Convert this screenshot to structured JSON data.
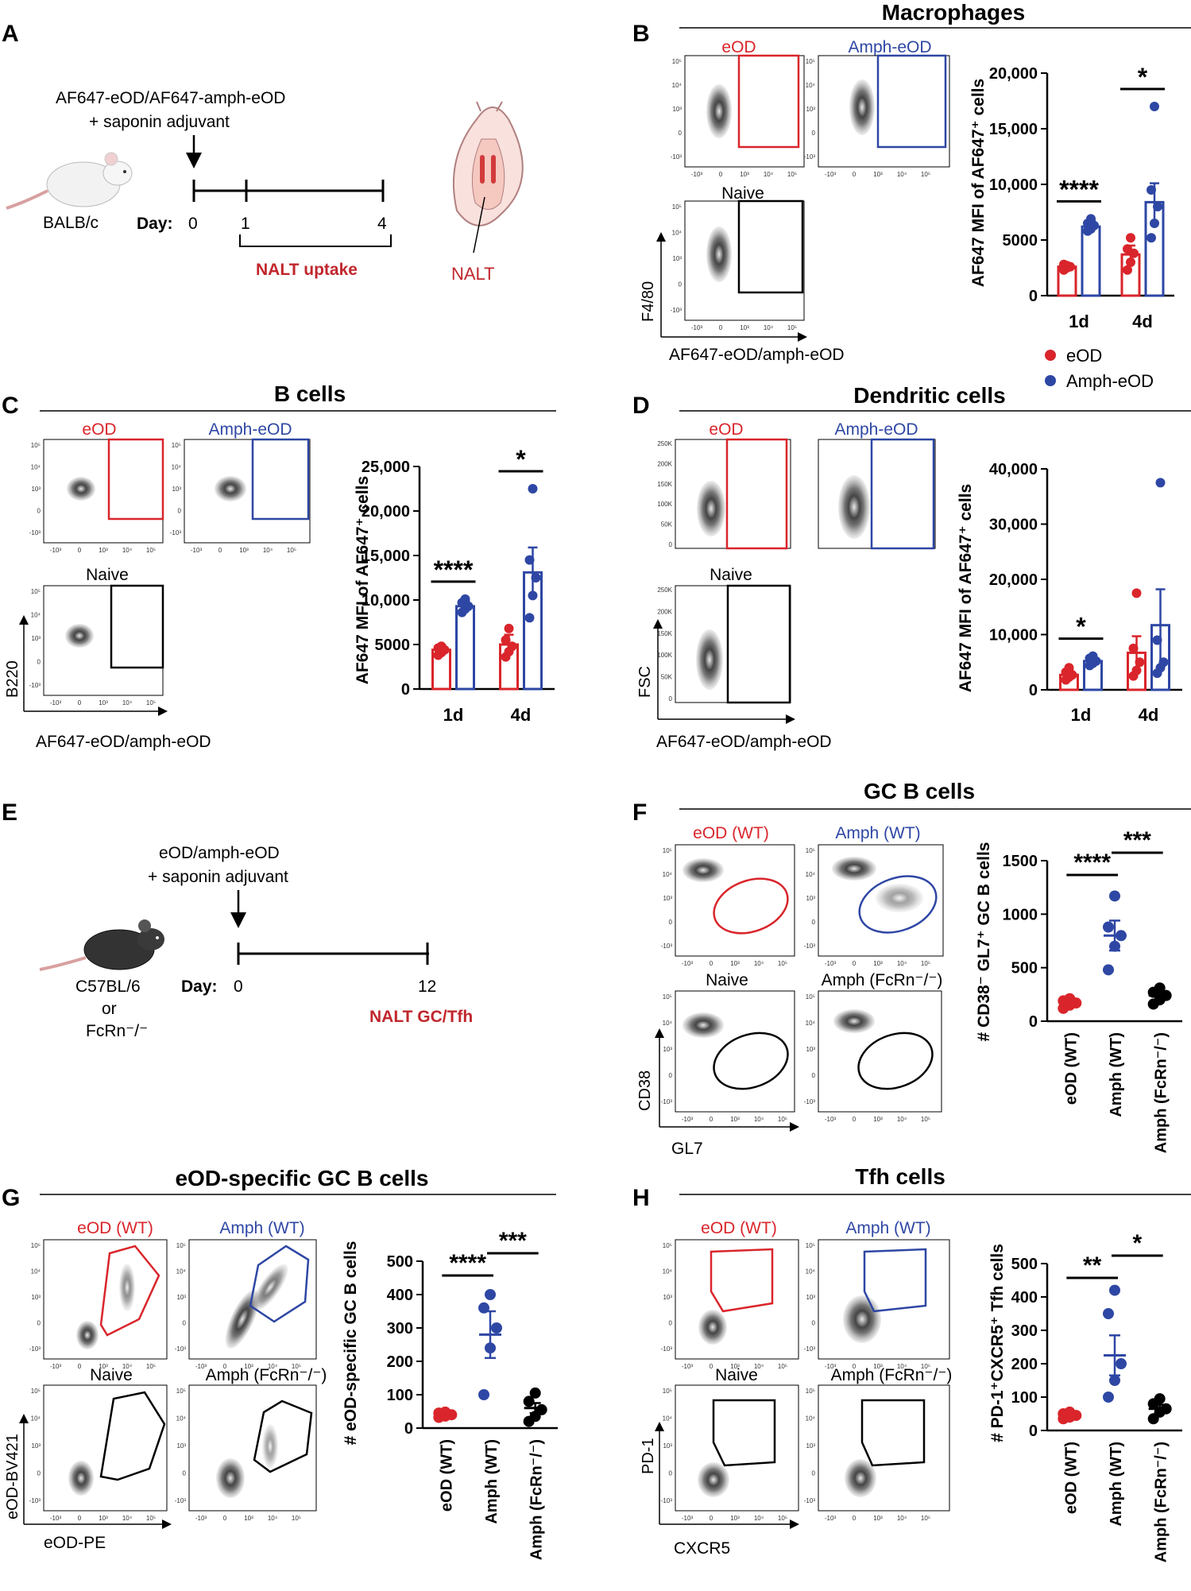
{
  "colors": {
    "eod": "#d9252b",
    "amph": "#2e47a4",
    "black": "#000000",
    "naltRed": "#c0272d"
  },
  "panels": {
    "A": {
      "letter": "A",
      "injection_line1": "AF647-eOD/AF647-amph-eOD",
      "injection_line2": "+ saponin adjuvant",
      "mouse_label": "BALB/c",
      "day_label": "Day:",
      "day_ticks": [
        "0",
        "1",
        "4"
      ],
      "bracket_label": "NALT uptake",
      "organ_label": "NALT"
    },
    "B": {
      "letter": "B",
      "title": "Macrophages",
      "gate_labels": {
        "eod": "eOD",
        "amph": "Amph-eOD",
        "naive": "Naive"
      },
      "y_axis_flow": "F4/80",
      "x_axis_flow": "AF647-eOD/amph-eOD",
      "legend": [
        "eOD",
        "Amph-eOD"
      ]
    },
    "C": {
      "letter": "C",
      "title": "B cells",
      "gate_labels": {
        "eod": "eOD",
        "amph": "Amph-eOD",
        "naive": "Naive"
      },
      "y_axis_flow": "B220",
      "x_axis_flow": "AF647-eOD/amph-eOD"
    },
    "D": {
      "letter": "D",
      "title": "Dendritic cells",
      "gate_labels": {
        "eod": "eOD",
        "amph": "Amph-eOD",
        "naive": "Naive"
      },
      "y_axis_flow": "FSC",
      "x_axis_flow": "AF647-eOD/amph-eOD"
    },
    "E": {
      "letter": "E",
      "injection_line1": "eOD/amph-eOD",
      "injection_line2": "+ saponin adjuvant",
      "mouse_label1": "C57BL/6",
      "mouse_label2": "or",
      "mouse_label3": "FcRn⁻/⁻",
      "day_label": "Day:",
      "day_ticks": [
        "0",
        "12"
      ],
      "end_label": "NALT GC/Tfh"
    },
    "F": {
      "letter": "F",
      "title": "GC B cells",
      "gate_labels": {
        "eod": "eOD (WT)",
        "amph": "Amph (WT)",
        "naive": "Naive",
        "ko": "Amph (FcRn⁻/⁻)"
      },
      "y_axis_flow": "CD38",
      "x_axis_flow": "GL7"
    },
    "G": {
      "letter": "G",
      "title": "eOD-specific GC B cells",
      "gate_labels": {
        "eod": "eOD (WT)",
        "amph": "Amph (WT)",
        "naive": "Naive",
        "ko": "Amph (FcRn⁻/⁻)"
      },
      "y_axis_flow": "eOD-BV421",
      "x_axis_flow": "eOD-PE"
    },
    "H": {
      "letter": "H",
      "title": "Tfh cells",
      "gate_labels": {
        "eod": "eOD (WT)",
        "amph": "Amph (WT)",
        "naive": "Naive",
        "ko": "Amph (FcRn⁻/⁻)"
      },
      "y_axis_flow": "PD-1",
      "x_axis_flow": "CXCR5"
    }
  },
  "flow_ticks": {
    "log": [
      "10⁵",
      "10⁴",
      "10³",
      "0",
      "-10³"
    ],
    "x_log": [
      "-10³",
      "0",
      "10³",
      "10⁴",
      "10⁵"
    ],
    "fsc": [
      "250K",
      "200K",
      "150K",
      "100K",
      "50K",
      "0"
    ]
  },
  "chart_data": [
    {
      "panel": "B",
      "type": "bar",
      "ylabel": "AF647 MFI of AF647⁺ cells",
      "categories": [
        "1d",
        "4d"
      ],
      "ylim": [
        0,
        20000
      ],
      "yticks": [
        "0",
        "5000",
        "10,000",
        "15,000",
        "20,000"
      ],
      "series": [
        {
          "name": "eOD",
          "values": [
            2600,
            3700
          ],
          "sem": [
            250,
            800
          ],
          "points": [
            [
              2300,
              2500,
              2600,
              2800,
              2700
            ],
            [
              2300,
              3000,
              3800,
              4200,
              5200
            ]
          ]
        },
        {
          "name": "Amph-eOD",
          "values": [
            6200,
            8400
          ],
          "sem": [
            600,
            1700
          ],
          "points": [
            [
              5800,
              6000,
              6300,
              6500,
              6900
            ],
            [
              5200,
              6500,
              8000,
              9500,
              17000
            ]
          ]
        }
      ],
      "significance": [
        "****",
        "*"
      ],
      "legend": [
        "eOD",
        "Amph-eOD"
      ]
    },
    {
      "panel": "C",
      "type": "bar",
      "ylabel": "AF647 MFI of AF647⁺ cells",
      "categories": [
        "1d",
        "4d"
      ],
      "ylim": [
        0,
        25000
      ],
      "yticks": [
        "0",
        "5000",
        "10,000",
        "15,000",
        "20,000",
        "25,000"
      ],
      "series": [
        {
          "name": "eOD",
          "values": [
            4400,
            5000
          ],
          "sem": [
            500,
            1100
          ],
          "points": [
            [
              3800,
              4100,
              4400,
              4600,
              4800
            ],
            [
              3600,
              4200,
              4800,
              5500,
              6800
            ]
          ]
        },
        {
          "name": "Amph-eOD",
          "values": [
            9300,
            13100
          ],
          "sem": [
            600,
            2800
          ],
          "points": [
            [
              8600,
              9000,
              9300,
              9700,
              10100
            ],
            [
              8000,
              10500,
              12500,
              14500,
              22500
            ]
          ]
        }
      ],
      "significance": [
        "****",
        "*"
      ]
    },
    {
      "panel": "D",
      "type": "bar",
      "ylabel": "AF647 MFI of AF647⁺ cells",
      "categories": [
        "1d",
        "4d"
      ],
      "ylim": [
        0,
        40000
      ],
      "yticks": [
        "0",
        "10,000",
        "20,000",
        "30,000",
        "40,000"
      ],
      "series": [
        {
          "name": "eOD",
          "values": [
            2700,
            6700
          ],
          "sem": [
            800,
            3000
          ],
          "points": [
            [
              1800,
              2300,
              2700,
              3200,
              4000
            ],
            [
              2500,
              3500,
              5000,
              7500,
              17500
            ]
          ]
        },
        {
          "name": "Amph-eOD",
          "values": [
            5200,
            11700
          ],
          "sem": [
            700,
            6500
          ],
          "points": [
            [
              4400,
              4800,
              5200,
              5700,
              6100
            ],
            [
              3000,
              4000,
              5000,
              9000,
              37500
            ]
          ]
        }
      ],
      "significance": [
        "*"
      ]
    },
    {
      "panel": "F",
      "type": "scatter",
      "ylabel": "# CD38⁻ GL7⁺ GC B cells",
      "categories": [
        "eOD (WT)",
        "Amph (WT)",
        "Amph (FcRn⁻/⁻)"
      ],
      "ylim": [
        0,
        1500
      ],
      "yticks": [
        "0",
        "500",
        "1000",
        "1500"
      ],
      "means": [
        170,
        800,
        240
      ],
      "sem": [
        30,
        140,
        40
      ],
      "points": [
        [
          120,
          150,
          170,
          190,
          210
        ],
        [
          480,
          700,
          800,
          880,
          1170
        ],
        [
          160,
          200,
          240,
          270,
          310
        ]
      ],
      "significance": [
        "****",
        "***"
      ]
    },
    {
      "panel": "G",
      "type": "scatter",
      "ylabel": "# eOD-specific GC B cells",
      "categories": [
        "eOD (WT)",
        "Amph (WT)",
        "Amph (FcRn⁻/⁻)"
      ],
      "ylim": [
        0,
        500
      ],
      "yticks": [
        "0",
        "100",
        "200",
        "300",
        "400",
        "500"
      ],
      "means": [
        40,
        280,
        60
      ],
      "sem": [
        6,
        70,
        15
      ],
      "points": [
        [
          32,
          36,
          40,
          45,
          48
        ],
        [
          100,
          240,
          300,
          360,
          400
        ],
        [
          20,
          35,
          55,
          80,
          105
        ]
      ],
      "significance": [
        "****",
        "***"
      ]
    },
    {
      "panel": "H",
      "type": "scatter",
      "ylabel": "# PD-1⁺CXCR5⁺ Tfh cells",
      "categories": [
        "eOD (WT)",
        "Amph (WT)",
        "Amph (FcRn⁻/⁻)"
      ],
      "ylim": [
        0,
        500
      ],
      "yticks": [
        "0",
        "100",
        "200",
        "300",
        "400",
        "500"
      ],
      "means": [
        45,
        225,
        65
      ],
      "sem": [
        8,
        60,
        12
      ],
      "points": [
        [
          35,
          40,
          45,
          50,
          55
        ],
        [
          100,
          150,
          200,
          350,
          420
        ],
        [
          35,
          55,
          65,
          80,
          95
        ]
      ],
      "significance": [
        "**",
        "*"
      ]
    }
  ]
}
